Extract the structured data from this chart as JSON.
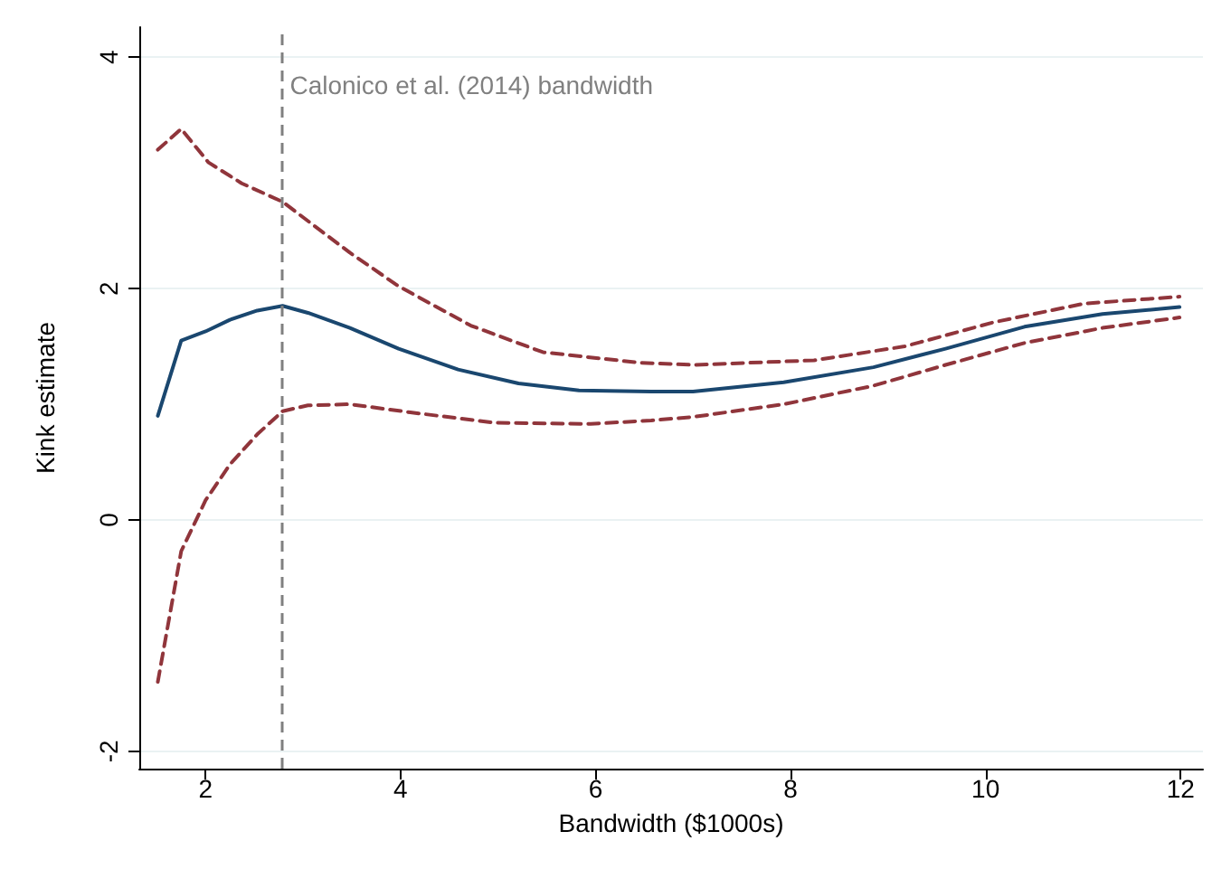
{
  "chart_data": {
    "type": "line",
    "xlabel": "Bandwidth ($1000s)",
    "ylabel": "Kink estimate",
    "x": [
      1.51,
      1.75,
      2.0,
      2.25,
      2.53,
      2.79,
      3.05,
      3.48,
      3.98,
      4.59,
      5.21,
      5.83,
      6.57,
      7.0,
      7.93,
      8.85,
      9.59,
      10.4,
      11.2,
      11.99
    ],
    "series": [
      {
        "color": "#1a476f",
        "line_style": "solid",
        "values": [
          0.9,
          1.55,
          1.63,
          1.73,
          1.81,
          1.85,
          1.79,
          1.66,
          1.48,
          1.3,
          1.18,
          1.12,
          1.11,
          1.11,
          1.19,
          1.32,
          1.48,
          1.67,
          1.78,
          1.84
        ]
      },
      {
        "color": "#90353b",
        "line_style": "dashed",
        "x": [
          1.51,
          1.75,
          2.03,
          2.37,
          2.79,
          3.48,
          3.98,
          4.72,
          5.46,
          6.44,
          7.0,
          8.24,
          9.17,
          10.09,
          11.01,
          11.99
        ],
        "values": [
          3.2,
          3.38,
          3.09,
          2.91,
          2.75,
          2.31,
          2.02,
          1.68,
          1.45,
          1.36,
          1.34,
          1.38,
          1.5,
          1.71,
          1.87,
          1.93
        ]
      },
      {
        "color": "#90353b",
        "line_style": "dashed",
        "x": [
          1.51,
          1.75,
          2.0,
          2.25,
          2.53,
          2.79,
          3.05,
          3.48,
          4.1,
          4.96,
          5.95,
          6.57,
          7.0,
          7.93,
          8.85,
          9.59,
          10.4,
          11.2,
          11.99
        ],
        "values": [
          -1.4,
          -0.27,
          0.17,
          0.48,
          0.74,
          0.94,
          0.99,
          1.0,
          0.93,
          0.84,
          0.83,
          0.86,
          0.89,
          1.0,
          1.16,
          1.34,
          1.53,
          1.66,
          1.75
        ]
      }
    ],
    "xlim": [
      1.32,
      12.23
    ],
    "xticks": [
      2,
      4,
      6,
      8,
      10,
      12
    ],
    "ylim": [
      -2.15,
      4.26
    ],
    "yticks": [
      -2,
      0,
      2,
      4
    ],
    "grid": "y",
    "marker": "none",
    "ref_lines": [
      {
        "axis": "x",
        "value": 2.79,
        "label": "Calonico et al. (2014) bandwidth",
        "color": "#808080",
        "line_style": "dashed"
      }
    ]
  }
}
